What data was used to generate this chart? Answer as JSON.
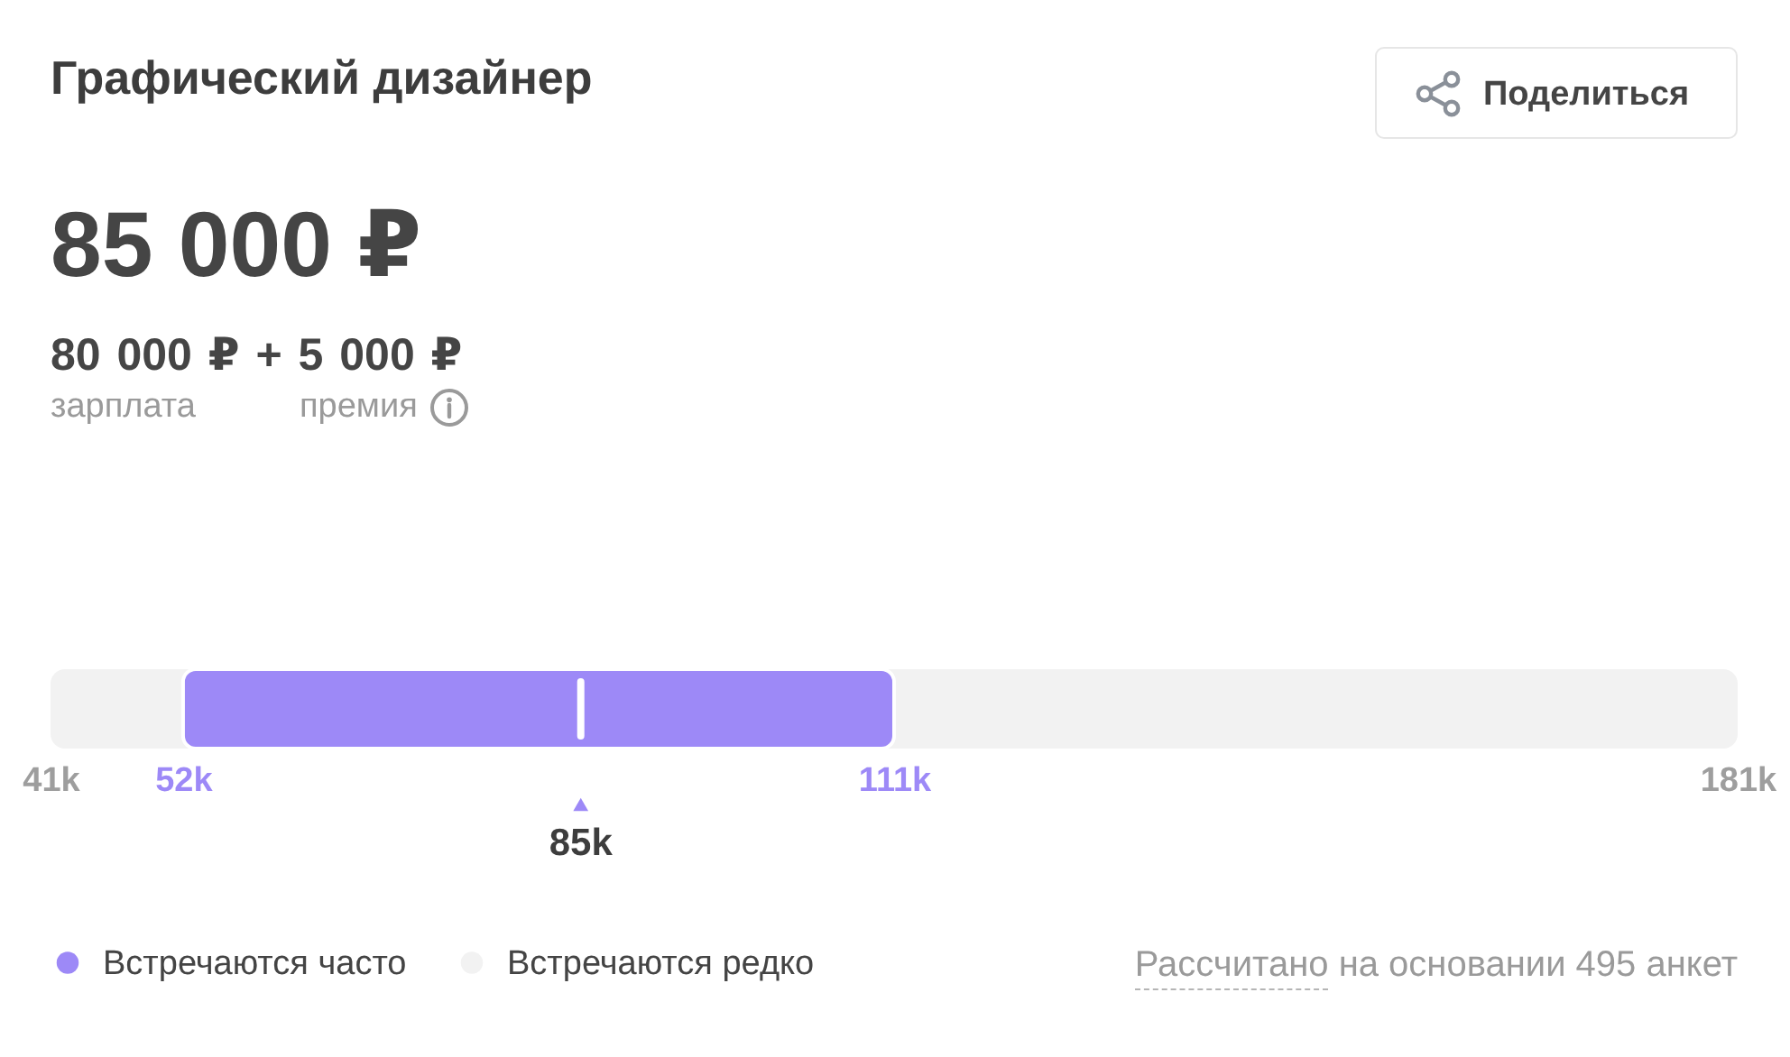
{
  "chart_data": {
    "type": "bar",
    "orientation": "horizontal",
    "title": "Графический дизайнер",
    "subtitle": "85 000 ₽",
    "annotations": [
      "80 000 ₽ + 5 000 ₽",
      "зарплата",
      "премия",
      "Поделиться",
      "Рассчитано на основании 495 анкет"
    ],
    "categories": [
      null
    ],
    "series": [
      {
        "name": "Встречаются часто",
        "color": "#9d89f7",
        "base": [
          52
        ],
        "values": [
          59
        ]
      },
      {
        "name": "Встречаются редко",
        "color": "#f2f2f2",
        "base": [
          41
        ],
        "values": [
          140
        ]
      }
    ],
    "xlim": [
      41,
      181
    ],
    "xticks": [
      {
        "value": 41,
        "label": "41k"
      },
      {
        "value": 52,
        "label": "52k"
      },
      {
        "value": 111,
        "label": "111k"
      },
      {
        "value": 181,
        "label": "181k"
      }
    ],
    "ref_lines": [
      {
        "axis": "x",
        "value": 85,
        "label": "85k",
        "color": "#ffffff"
      }
    ],
    "legend": "bottom left"
  }
}
